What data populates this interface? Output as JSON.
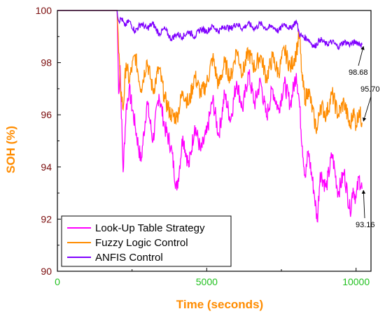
{
  "chart_data": {
    "type": "line",
    "xlabel": "Time (seconds)",
    "ylabel": "SOH (%)",
    "xlim": [
      0,
      10500
    ],
    "ylim": [
      90,
      100
    ],
    "xticks": [
      0,
      5000,
      10000
    ],
    "yticks": [
      90,
      92,
      94,
      96,
      98,
      100
    ],
    "xtick_labels": [
      "0",
      "5000",
      "10000"
    ],
    "ytick_labels": [
      "90",
      "92",
      "94",
      "96",
      "98",
      "100"
    ],
    "grid": false,
    "legend_position": "bottom-left",
    "colors": {
      "xlabel": "#ff8c00",
      "ylabel": "#ff8c00",
      "xtick": "#22c020",
      "ytick": "#7a0c0c",
      "axis": "#000000"
    },
    "series": [
      {
        "name": "Look-Up Table Strategy",
        "color": "#ff00ff",
        "points": [
          [
            0,
            100
          ],
          [
            2000,
            100
          ],
          [
            2050,
            96.8
          ],
          [
            2100,
            97.9
          ],
          [
            2200,
            93.8
          ],
          [
            2300,
            96.2
          ],
          [
            2400,
            97.0
          ],
          [
            2600,
            95.6
          ],
          [
            2800,
            94.2
          ],
          [
            3000,
            96.5
          ],
          [
            3200,
            95.0
          ],
          [
            3400,
            96.8
          ],
          [
            3600,
            95.5
          ],
          [
            3800,
            94.8
          ],
          [
            4000,
            93.1
          ],
          [
            4200,
            95.2
          ],
          [
            4400,
            94.0
          ],
          [
            4600,
            95.6
          ],
          [
            4800,
            94.6
          ],
          [
            5000,
            95.3
          ],
          [
            5200,
            96.6
          ],
          [
            5400,
            95.2
          ],
          [
            5600,
            96.8
          ],
          [
            5800,
            95.8
          ],
          [
            6000,
            97.3
          ],
          [
            6200,
            96.2
          ],
          [
            6400,
            97.6
          ],
          [
            6600,
            96.4
          ],
          [
            6800,
            97.3
          ],
          [
            7000,
            95.9
          ],
          [
            7200,
            97.0
          ],
          [
            7400,
            96.2
          ],
          [
            7600,
            97.2
          ],
          [
            7800,
            96.4
          ],
          [
            8000,
            97.6
          ],
          [
            8100,
            96.5
          ],
          [
            8200,
            94.8
          ],
          [
            8300,
            93.6
          ],
          [
            8400,
            94.6
          ],
          [
            8600,
            93.0
          ],
          [
            8700,
            91.9
          ],
          [
            8800,
            93.8
          ],
          [
            9000,
            93.2
          ],
          [
            9200,
            94.5
          ],
          [
            9400,
            93.0
          ],
          [
            9600,
            93.8
          ],
          [
            9800,
            92.3
          ],
          [
            9900,
            93.2
          ],
          [
            10000,
            92.8
          ],
          [
            10100,
            93.6
          ],
          [
            10200,
            93.16
          ]
        ],
        "end_label": "93.16"
      },
      {
        "name": "Fuzzy Logic Control",
        "color": "#ff8c00",
        "points": [
          [
            0,
            100
          ],
          [
            2000,
            100
          ],
          [
            2050,
            98.4
          ],
          [
            2100,
            97.2
          ],
          [
            2200,
            96.2
          ],
          [
            2300,
            98.0
          ],
          [
            2400,
            97.3
          ],
          [
            2600,
            98.3
          ],
          [
            2800,
            97.0
          ],
          [
            3000,
            98.1
          ],
          [
            3200,
            96.9
          ],
          [
            3400,
            97.8
          ],
          [
            3600,
            96.6
          ],
          [
            3800,
            96.0
          ],
          [
            4000,
            95.9
          ],
          [
            4200,
            96.9
          ],
          [
            4400,
            96.4
          ],
          [
            4600,
            97.5
          ],
          [
            4800,
            96.8
          ],
          [
            5000,
            97.2
          ],
          [
            5200,
            98.2
          ],
          [
            5400,
            97.1
          ],
          [
            5600,
            98.0
          ],
          [
            5800,
            97.4
          ],
          [
            6000,
            98.5
          ],
          [
            6200,
            97.6
          ],
          [
            6400,
            98.4
          ],
          [
            6600,
            97.8
          ],
          [
            6800,
            98.3
          ],
          [
            7000,
            97.4
          ],
          [
            7200,
            98.2
          ],
          [
            7400,
            97.6
          ],
          [
            7600,
            98.5
          ],
          [
            7800,
            97.8
          ],
          [
            8000,
            98.4
          ],
          [
            8100,
            99.1
          ],
          [
            8200,
            97.3
          ],
          [
            8300,
            96.6
          ],
          [
            8400,
            97.0
          ],
          [
            8600,
            95.8
          ],
          [
            8700,
            95.4
          ],
          [
            8800,
            96.4
          ],
          [
            9000,
            96.0
          ],
          [
            9200,
            96.8
          ],
          [
            9400,
            96.0
          ],
          [
            9600,
            96.5
          ],
          [
            9800,
            95.5
          ],
          [
            9900,
            96.2
          ],
          [
            10000,
            95.6
          ],
          [
            10100,
            96.2
          ],
          [
            10200,
            95.7
          ]
        ],
        "end_label": "95.70"
      },
      {
        "name": "ANFIS Control",
        "color": "#7f00ff",
        "points": [
          [
            0,
            100
          ],
          [
            2000,
            100
          ],
          [
            2050,
            99.6
          ],
          [
            2150,
            99.7
          ],
          [
            2250,
            99.4
          ],
          [
            2400,
            99.6
          ],
          [
            2600,
            99.2
          ],
          [
            2800,
            99.5
          ],
          [
            3000,
            99.3
          ],
          [
            3200,
            99.5
          ],
          [
            3400,
            99.1
          ],
          [
            3600,
            99.3
          ],
          [
            3800,
            98.9
          ],
          [
            4000,
            99.1
          ],
          [
            4200,
            99.0
          ],
          [
            4400,
            99.2
          ],
          [
            4600,
            99.0
          ],
          [
            4800,
            99.3
          ],
          [
            5000,
            99.2
          ],
          [
            5200,
            99.4
          ],
          [
            5400,
            99.2
          ],
          [
            5600,
            99.4
          ],
          [
            5800,
            99.3
          ],
          [
            6000,
            99.5
          ],
          [
            6200,
            99.3
          ],
          [
            6400,
            99.5
          ],
          [
            6600,
            99.3
          ],
          [
            6800,
            99.5
          ],
          [
            7000,
            99.3
          ],
          [
            7200,
            99.4
          ],
          [
            7400,
            99.2
          ],
          [
            7600,
            99.5
          ],
          [
            7800,
            99.3
          ],
          [
            8000,
            99.6
          ],
          [
            8100,
            99.1
          ],
          [
            8200,
            99.0
          ],
          [
            8400,
            98.9
          ],
          [
            8600,
            98.6
          ],
          [
            8800,
            98.9
          ],
          [
            9000,
            98.7
          ],
          [
            9200,
            98.8
          ],
          [
            9400,
            98.6
          ],
          [
            9600,
            98.8
          ],
          [
            9800,
            98.7
          ],
          [
            10000,
            98.8
          ],
          [
            10200,
            98.68
          ]
        ],
        "end_label": "98.68"
      }
    ]
  }
}
